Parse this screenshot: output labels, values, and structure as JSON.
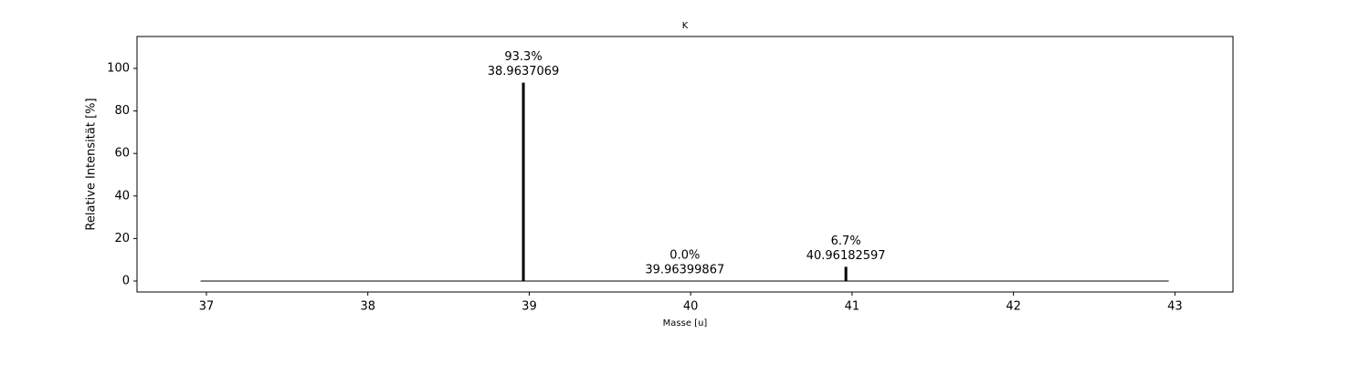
{
  "chart_data": {
    "type": "stem",
    "title": "K",
    "x_label": "Masse [u]",
    "y_label": "Relative Intensität [%]",
    "x": [
      38.9637069,
      39.96399867,
      40.96182597
    ],
    "values": [
      93.3,
      0.0,
      6.7
    ],
    "value_labels": [
      "93.3%",
      "0.0%",
      "6.7%"
    ],
    "color": "#000000",
    "xlim": [
      36.57,
      43.36
    ],
    "xticks": [
      37,
      38,
      39,
      40,
      41,
      42,
      43
    ],
    "ylim": [
      -5.15,
      115
    ],
    "yticks": [
      0,
      20,
      40,
      60,
      80,
      100
    ]
  }
}
